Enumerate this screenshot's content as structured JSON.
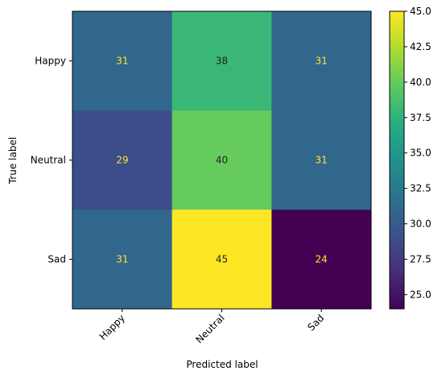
{
  "chart_data": {
    "type": "heatmap",
    "title": "",
    "xlabel": "Predicted label",
    "ylabel": "True label",
    "x_categories": [
      "Happy",
      "Neutral",
      "Sad"
    ],
    "y_categories": [
      "Happy",
      "Neutral",
      "Sad"
    ],
    "values": [
      [
        31,
        38,
        31
      ],
      [
        29,
        40,
        31
      ],
      [
        31,
        45,
        24
      ]
    ],
    "colormap": "viridis",
    "vmin": 24,
    "vmax": 45,
    "colorbar_ticks": [
      "25.0",
      "27.5",
      "30.0",
      "32.5",
      "35.0",
      "37.5",
      "40.0",
      "42.5",
      "45.0"
    ],
    "annotation_colors": {
      "dark_cells": "#fde725",
      "light_cells": "#222222"
    },
    "grid": false
  }
}
